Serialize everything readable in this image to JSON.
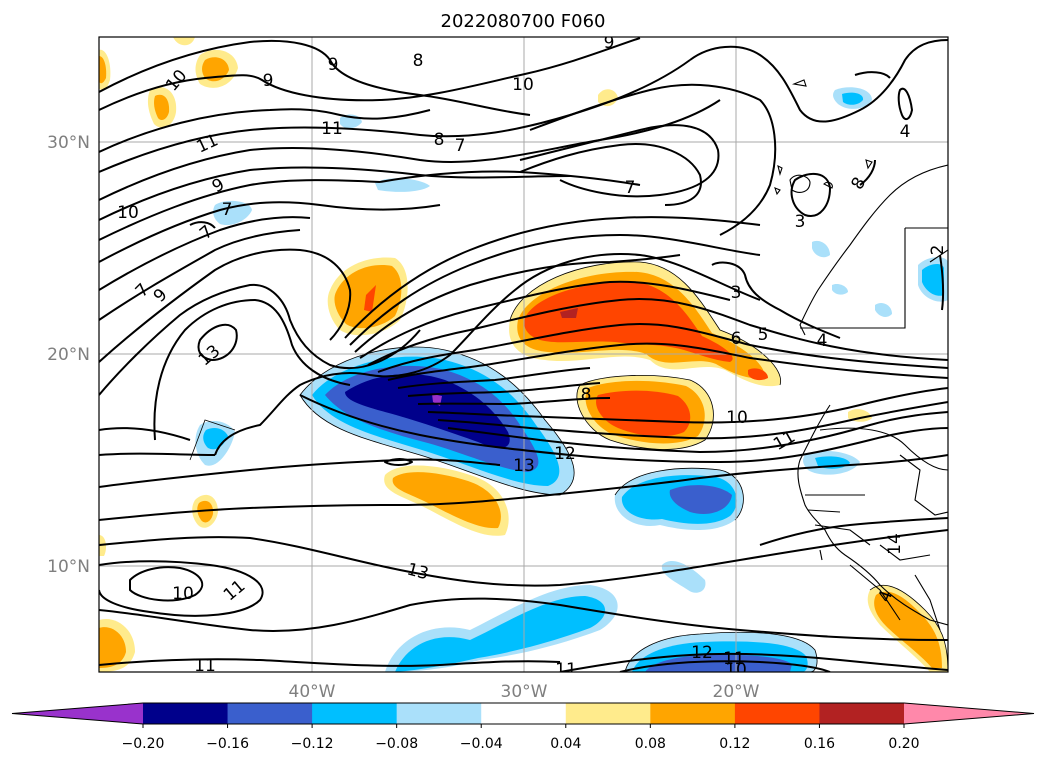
{
  "chart_data": {
    "type": "contour",
    "title": "2022080700 F060",
    "lon_ticks": [
      "40°W",
      "30°W",
      "20°W"
    ],
    "lat_ticks": [
      "30°N",
      "20°N",
      "10°N"
    ],
    "colorbar": {
      "ticks": [
        "−0.20",
        "−0.16",
        "−0.12",
        "−0.08",
        "−0.04",
        "0.04",
        "0.08",
        "0.12",
        "0.16",
        "0.20"
      ],
      "levels": [
        -0.2,
        -0.16,
        -0.12,
        -0.08,
        -0.04,
        0.04,
        0.08,
        0.12,
        0.16,
        0.2
      ],
      "colors": [
        "#9932cc",
        "#00008b",
        "#3a5fcd",
        "#00bfff",
        "#aae0fa",
        "#ffffff",
        "#ffeb8c",
        "#ffa500",
        "#ff4500",
        "#b22222",
        "#ff88aa"
      ],
      "extend": "both"
    },
    "contour_labels": [
      "9",
      "8",
      "9",
      "10",
      "9",
      "10",
      "11",
      "8",
      "7",
      "11",
      "9",
      "7",
      "7",
      "7",
      "10",
      "7",
      "9",
      "13",
      "3",
      "6",
      "5",
      "4",
      "8",
      "10",
      "11",
      "12",
      "13",
      "13",
      "10",
      "11",
      "11",
      "12",
      "11",
      "10",
      "11",
      "14",
      "4",
      "3",
      "2",
      "8",
      "4"
    ]
  }
}
